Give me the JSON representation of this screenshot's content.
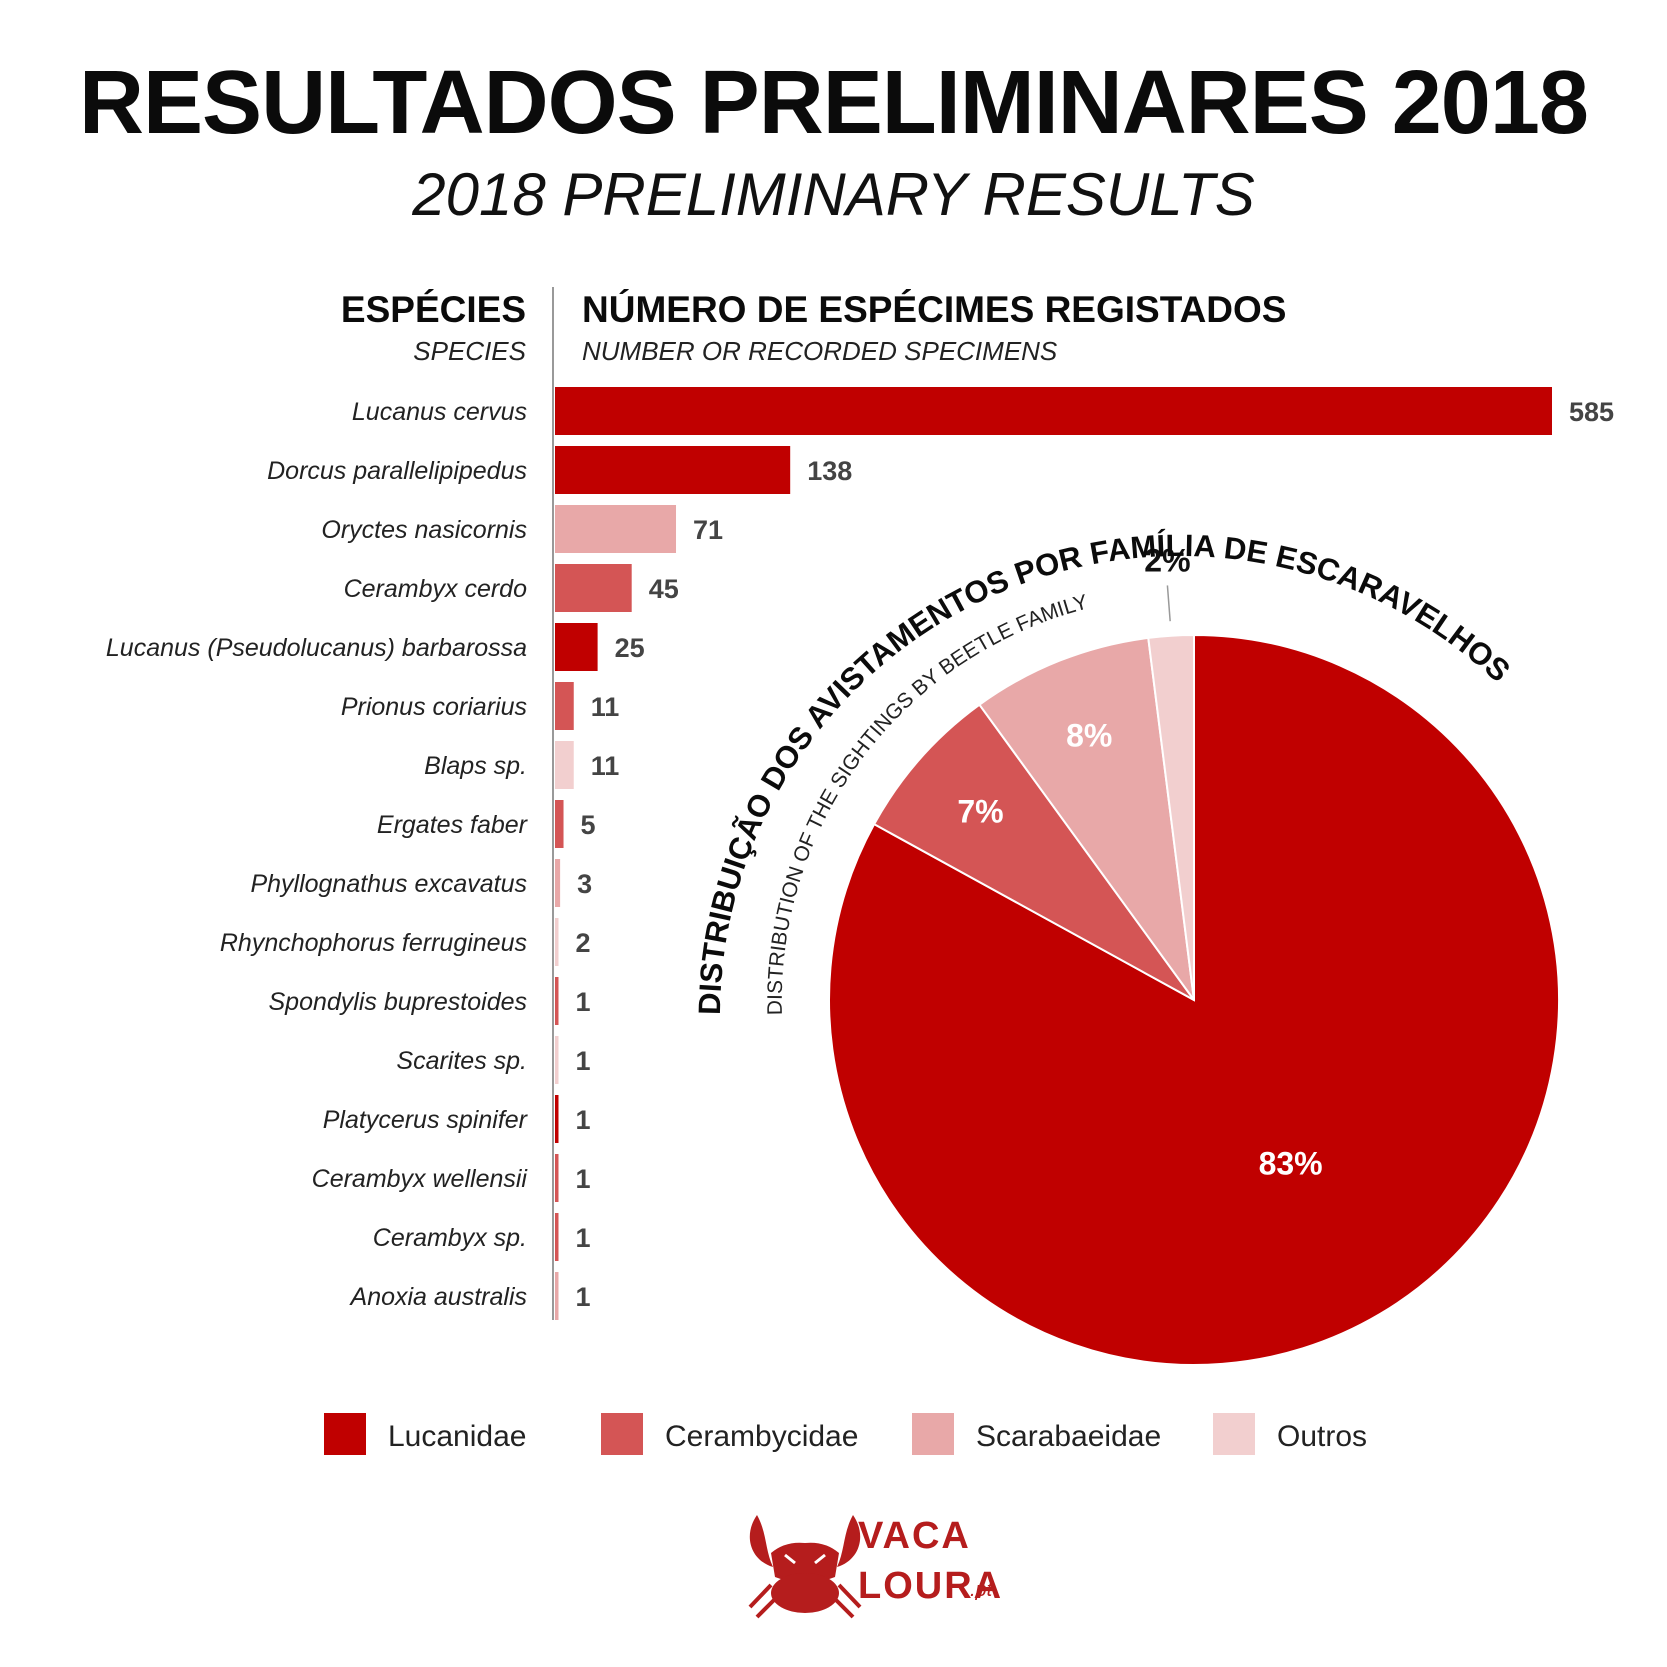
{
  "title": "RESULTADOS PRELIMINARES 2018",
  "subtitle": "2018 PRELIMINARY RESULTS",
  "headers": {
    "species": "ESPÉCIES",
    "species_en": "SPECIES",
    "count": "NÚMERO DE ESPÉCIMES REGISTADOS",
    "count_en": "NUMBER OR RECORDED SPECIMENS"
  },
  "pie_title": "DISTRIBUIÇÃO DOS AVISTAMENTOS POR FAMÍLIA DE ESCARAVELHOS",
  "pie_subtitle": "DISTRIBUTION OF THE SIGHTINGS BY BEETLE FAMILY",
  "colors": {
    "Lucanidae": "#c00000",
    "Cerambycidae": "#d45555",
    "Scarabaeidae": "#e8a8a8",
    "Outros": "#f2cfcf"
  },
  "logo": {
    "line1": "VACA",
    "line2": "LOURA",
    "suffix": ".pt"
  },
  "chart_data": [
    {
      "type": "bar",
      "orientation": "horizontal",
      "categories": [
        "Lucanus cervus",
        "Dorcus parallelipipedus",
        "Oryctes nasicornis",
        "Cerambyx cerdo",
        "Lucanus (Pseudolucanus) barbarossa",
        "Prionus coriarius",
        "Blaps sp.",
        "Ergates faber",
        "Phyllognathus excavatus",
        "Rhynchophorus ferrugineus",
        "Spondylis buprestoides",
        "Scarites sp.",
        "Platycerus spinifer",
        "Cerambyx wellensii",
        "Cerambyx sp.",
        "Anoxia australis"
      ],
      "values": [
        585,
        138,
        71,
        45,
        25,
        11,
        11,
        5,
        3,
        2,
        1,
        1,
        1,
        1,
        1,
        1
      ],
      "families": [
        "Lucanidae",
        "Lucanidae",
        "Scarabaeidae",
        "Cerambycidae",
        "Lucanidae",
        "Cerambycidae",
        "Outros",
        "Cerambycidae",
        "Scarabaeidae",
        "Outros",
        "Cerambycidae",
        "Outros",
        "Lucanidae",
        "Cerambycidae",
        "Cerambycidae",
        "Scarabaeidae"
      ],
      "xlim": [
        0,
        585
      ]
    },
    {
      "type": "pie",
      "categories": [
        "Lucanidae",
        "Cerambycidae",
        "Scarabaeidae",
        "Outros"
      ],
      "values": [
        83,
        7,
        8,
        2
      ],
      "labels": [
        "83%",
        "7%",
        "8%",
        "2%"
      ],
      "legend": [
        "Lucanidae",
        "Cerambycidae",
        "Scarabaeidae",
        "Outros"
      ],
      "legend_position": "bottom"
    }
  ]
}
